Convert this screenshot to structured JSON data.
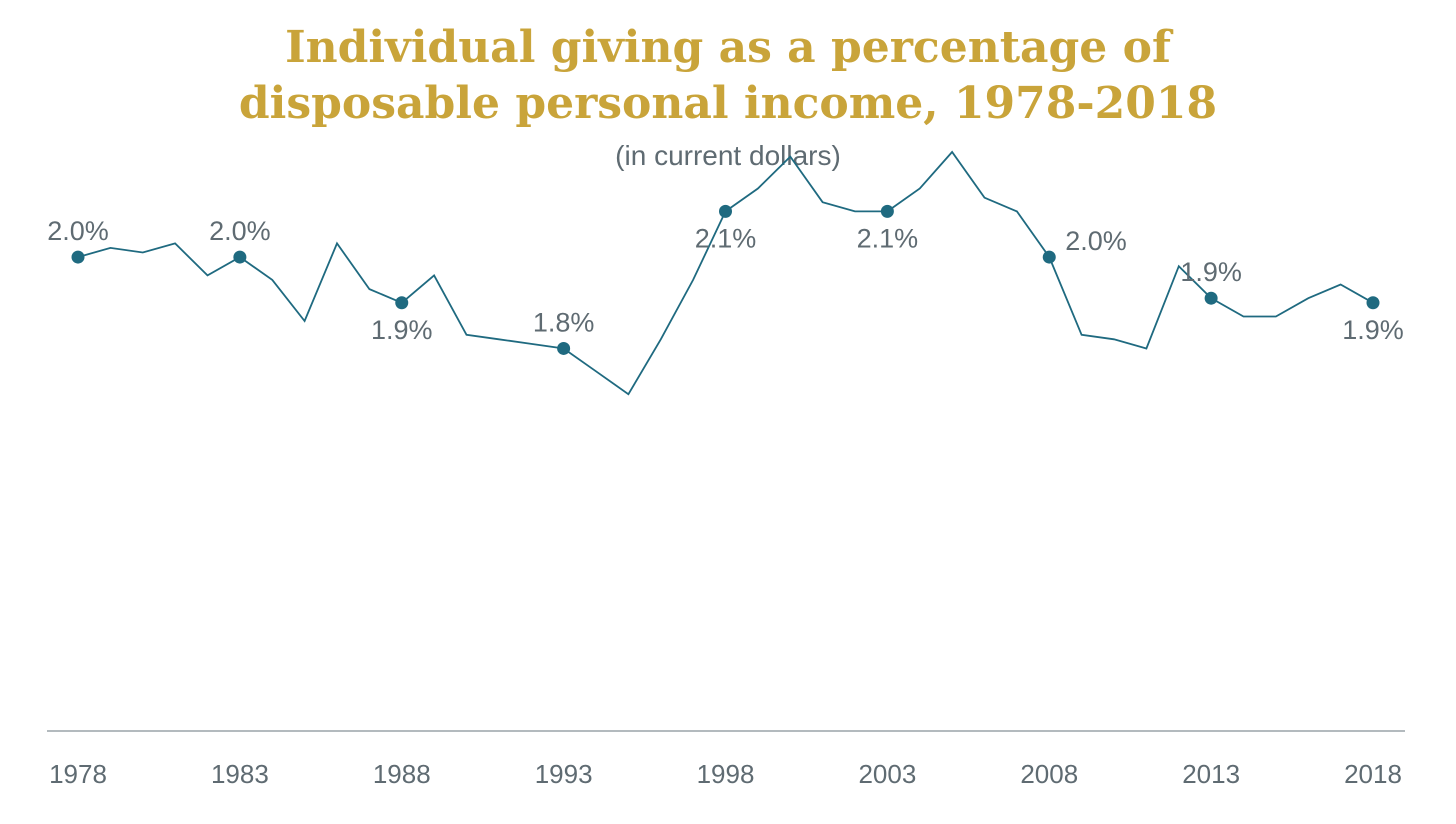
{
  "chart_data": {
    "type": "line",
    "title_lines": [
      "Individual giving as a percentage of",
      "disposable personal income, 1978-2018"
    ],
    "subtitle": "(in current dollars)",
    "xlabel": "",
    "ylabel": "",
    "ylim": [
      1.0,
      2.3
    ],
    "grid": false,
    "series": [
      {
        "name": "Individual giving (% of disposable personal income)",
        "x": [
          1978,
          1979,
          1980,
          1981,
          1982,
          1983,
          1984,
          1985,
          1986,
          1987,
          1988,
          1989,
          1990,
          1991,
          1992,
          1993,
          1994,
          1995,
          1996,
          1997,
          1998,
          1999,
          2000,
          2001,
          2002,
          2003,
          2004,
          2005,
          2006,
          2007,
          2008,
          2009,
          2010,
          2011,
          2012,
          2013,
          2014,
          2015,
          2016,
          2017,
          2018
        ],
        "values": [
          2.0,
          2.02,
          2.01,
          2.03,
          1.96,
          2.0,
          1.95,
          1.86,
          2.03,
          1.93,
          1.9,
          1.96,
          1.83,
          1.82,
          1.81,
          1.8,
          1.75,
          1.7,
          1.82,
          1.95,
          2.1,
          2.15,
          2.22,
          2.12,
          2.1,
          2.1,
          2.15,
          2.23,
          2.13,
          2.1,
          2.0,
          1.83,
          1.82,
          1.8,
          1.98,
          1.91,
          1.87,
          1.87,
          1.91,
          1.94,
          1.9
        ]
      }
    ],
    "data_labels": [
      {
        "x": 1978,
        "text": "2.0%",
        "pos": "above"
      },
      {
        "x": 1983,
        "text": "2.0%",
        "pos": "above"
      },
      {
        "x": 1988,
        "text": "1.9%",
        "pos": "below"
      },
      {
        "x": 1993,
        "text": "1.8%",
        "pos": "above"
      },
      {
        "x": 1998,
        "text": "2.1%",
        "pos": "below"
      },
      {
        "x": 2003,
        "text": "2.1%",
        "pos": "below"
      },
      {
        "x": 2008,
        "text": "2.0%",
        "pos": "right"
      },
      {
        "x": 2013,
        "text": "1.9%",
        "pos": "above"
      },
      {
        "x": 2018,
        "text": "1.9%",
        "pos": "below"
      }
    ],
    "x_ticks": [
      "1978",
      "1983",
      "1988",
      "1993",
      "1998",
      "2003",
      "2008",
      "2013",
      "2018"
    ],
    "colors": {
      "line": "#1f6a80",
      "marker": "#1f6a80",
      "title": "#C9A43A",
      "text": "#5f6b72",
      "axis": "#9aa3a8"
    }
  }
}
